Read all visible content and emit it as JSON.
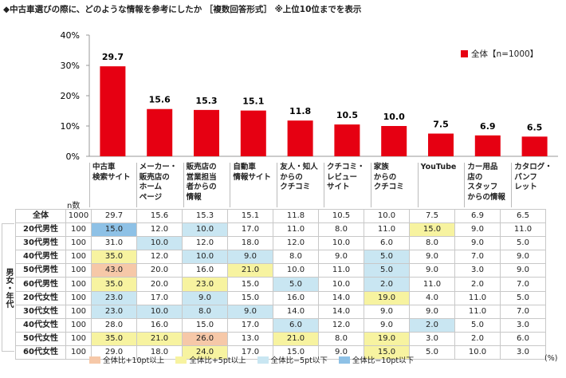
{
  "title": "◆中古車選びの際に、どのような情報を参考にしたか ［複数回答形式］ ※上位10位までを表示",
  "chart_data": {
    "type": "bar",
    "categories": [
      [
        "中古車",
        "検索サイト"
      ],
      [
        "メーカー・",
        "販売店の",
        "ホーム",
        "ページ"
      ],
      [
        "販売店の",
        "営業担当",
        "者からの",
        "情報"
      ],
      [
        "自動車",
        "情報サイト"
      ],
      [
        "友人・知人",
        "からの",
        "クチコミ"
      ],
      [
        "クチコミ・",
        "レビュー",
        "サイト"
      ],
      [
        "家族",
        "からの",
        "クチコミ"
      ],
      [
        "YouTube"
      ],
      [
        "カー用品",
        "店の",
        "スタッフ",
        "からの情報"
      ],
      [
        "カタログ・",
        "パンフ",
        "レット"
      ]
    ],
    "series": [
      {
        "name": "全体【n=1000】",
        "values": [
          29.7,
          15.6,
          15.3,
          15.1,
          11.8,
          10.5,
          10.0,
          7.5,
          6.9,
          6.5
        ]
      }
    ],
    "yticks": [
      "0%",
      "10%",
      "20%",
      "30%",
      "40%"
    ],
    "ylim": [
      0,
      40
    ],
    "bar_color": "#e60012",
    "legend_position": "top-right"
  },
  "table": {
    "n_header": "n数",
    "side_label": "男女・年代",
    "rows": [
      {
        "label": "全体",
        "n": "1000",
        "values": [
          "29.7",
          "15.6",
          "15.3",
          "15.1",
          "11.8",
          "10.5",
          "10.0",
          "7.5",
          "6.9",
          "6.5"
        ],
        "hl": [
          "",
          "",
          "",
          "",
          "",
          "",
          "",
          "",
          "",
          ""
        ]
      },
      {
        "label": "20代男性",
        "n": "100",
        "values": [
          "15.0",
          "12.0",
          "10.0",
          "17.0",
          "11.0",
          "8.0",
          "11.0",
          "15.0",
          "9.0",
          "11.0"
        ],
        "hl": [
          "m10",
          "",
          "m5",
          "",
          "",
          "",
          "",
          "p5",
          "",
          ""
        ]
      },
      {
        "label": "30代男性",
        "n": "100",
        "values": [
          "31.0",
          "10.0",
          "12.0",
          "18.0",
          "12.0",
          "10.0",
          "6.0",
          "8.0",
          "9.0",
          "5.0"
        ],
        "hl": [
          "",
          "m5",
          "",
          "",
          "",
          "",
          "",
          "",
          "",
          ""
        ]
      },
      {
        "label": "40代男性",
        "n": "100",
        "values": [
          "35.0",
          "12.0",
          "10.0",
          "9.0",
          "8.0",
          "9.0",
          "5.0",
          "9.0",
          "7.0",
          "9.0"
        ],
        "hl": [
          "p5",
          "",
          "m5",
          "m5",
          "",
          "",
          "m5",
          "",
          "",
          ""
        ]
      },
      {
        "label": "50代男性",
        "n": "100",
        "values": [
          "43.0",
          "20.0",
          "16.0",
          "21.0",
          "10.0",
          "11.0",
          "5.0",
          "9.0",
          "3.0",
          "9.0"
        ],
        "hl": [
          "p10",
          "",
          "",
          "p5",
          "",
          "",
          "m5",
          "",
          "",
          ""
        ]
      },
      {
        "label": "60代男性",
        "n": "100",
        "values": [
          "35.0",
          "20.0",
          "23.0",
          "15.0",
          "5.0",
          "10.0",
          "2.0",
          "11.0",
          "2.0",
          "7.0"
        ],
        "hl": [
          "p5",
          "",
          "p5",
          "",
          "m5",
          "",
          "m5",
          "",
          "",
          ""
        ]
      },
      {
        "label": "20代女性",
        "n": "100",
        "values": [
          "23.0",
          "17.0",
          "9.0",
          "15.0",
          "16.0",
          "14.0",
          "19.0",
          "4.0",
          "11.0",
          "5.0"
        ],
        "hl": [
          "m5",
          "",
          "m5",
          "",
          "",
          "",
          "p5",
          "",
          "",
          ""
        ]
      },
      {
        "label": "30代女性",
        "n": "100",
        "values": [
          "23.0",
          "10.0",
          "8.0",
          "9.0",
          "14.0",
          "14.0",
          "9.0",
          "9.0",
          "11.0",
          "7.0"
        ],
        "hl": [
          "m5",
          "m5",
          "m5",
          "m5",
          "",
          "",
          "",
          "",
          "",
          ""
        ]
      },
      {
        "label": "40代女性",
        "n": "100",
        "values": [
          "28.0",
          "16.0",
          "15.0",
          "17.0",
          "6.0",
          "12.0",
          "9.0",
          "2.0",
          "5.0",
          "3.0"
        ],
        "hl": [
          "",
          "",
          "",
          "",
          "m5",
          "",
          "",
          "m5",
          "",
          ""
        ]
      },
      {
        "label": "50代女性",
        "n": "100",
        "values": [
          "35.0",
          "21.0",
          "26.0",
          "13.0",
          "21.0",
          "8.0",
          "19.0",
          "3.0",
          "2.0",
          "6.0"
        ],
        "hl": [
          "p5",
          "p5",
          "p10",
          "",
          "p5",
          "",
          "p5",
          "",
          "",
          ""
        ]
      },
      {
        "label": "60代女性",
        "n": "100",
        "values": [
          "29.0",
          "18.0",
          "24.0",
          "17.0",
          "15.0",
          "9.0",
          "15.0",
          "5.0",
          "10.0",
          "3.0"
        ],
        "hl": [
          "",
          "",
          "p5",
          "",
          "",
          "",
          "p5",
          "",
          "",
          ""
        ]
      }
    ]
  },
  "legend_notes": [
    {
      "key": "p10",
      "label": "全体比+10pt以上",
      "color": "#f6c8a8"
    },
    {
      "key": "p5",
      "label": "全体比+5pt以上",
      "color": "#f7f3a0"
    },
    {
      "key": "m5",
      "label": "全体比−5pt以下",
      "color": "#c9e6f2"
    },
    {
      "key": "m10",
      "label": "全体比−10pt以下",
      "color": "#8ec1e6"
    }
  ],
  "unit": "(%)"
}
